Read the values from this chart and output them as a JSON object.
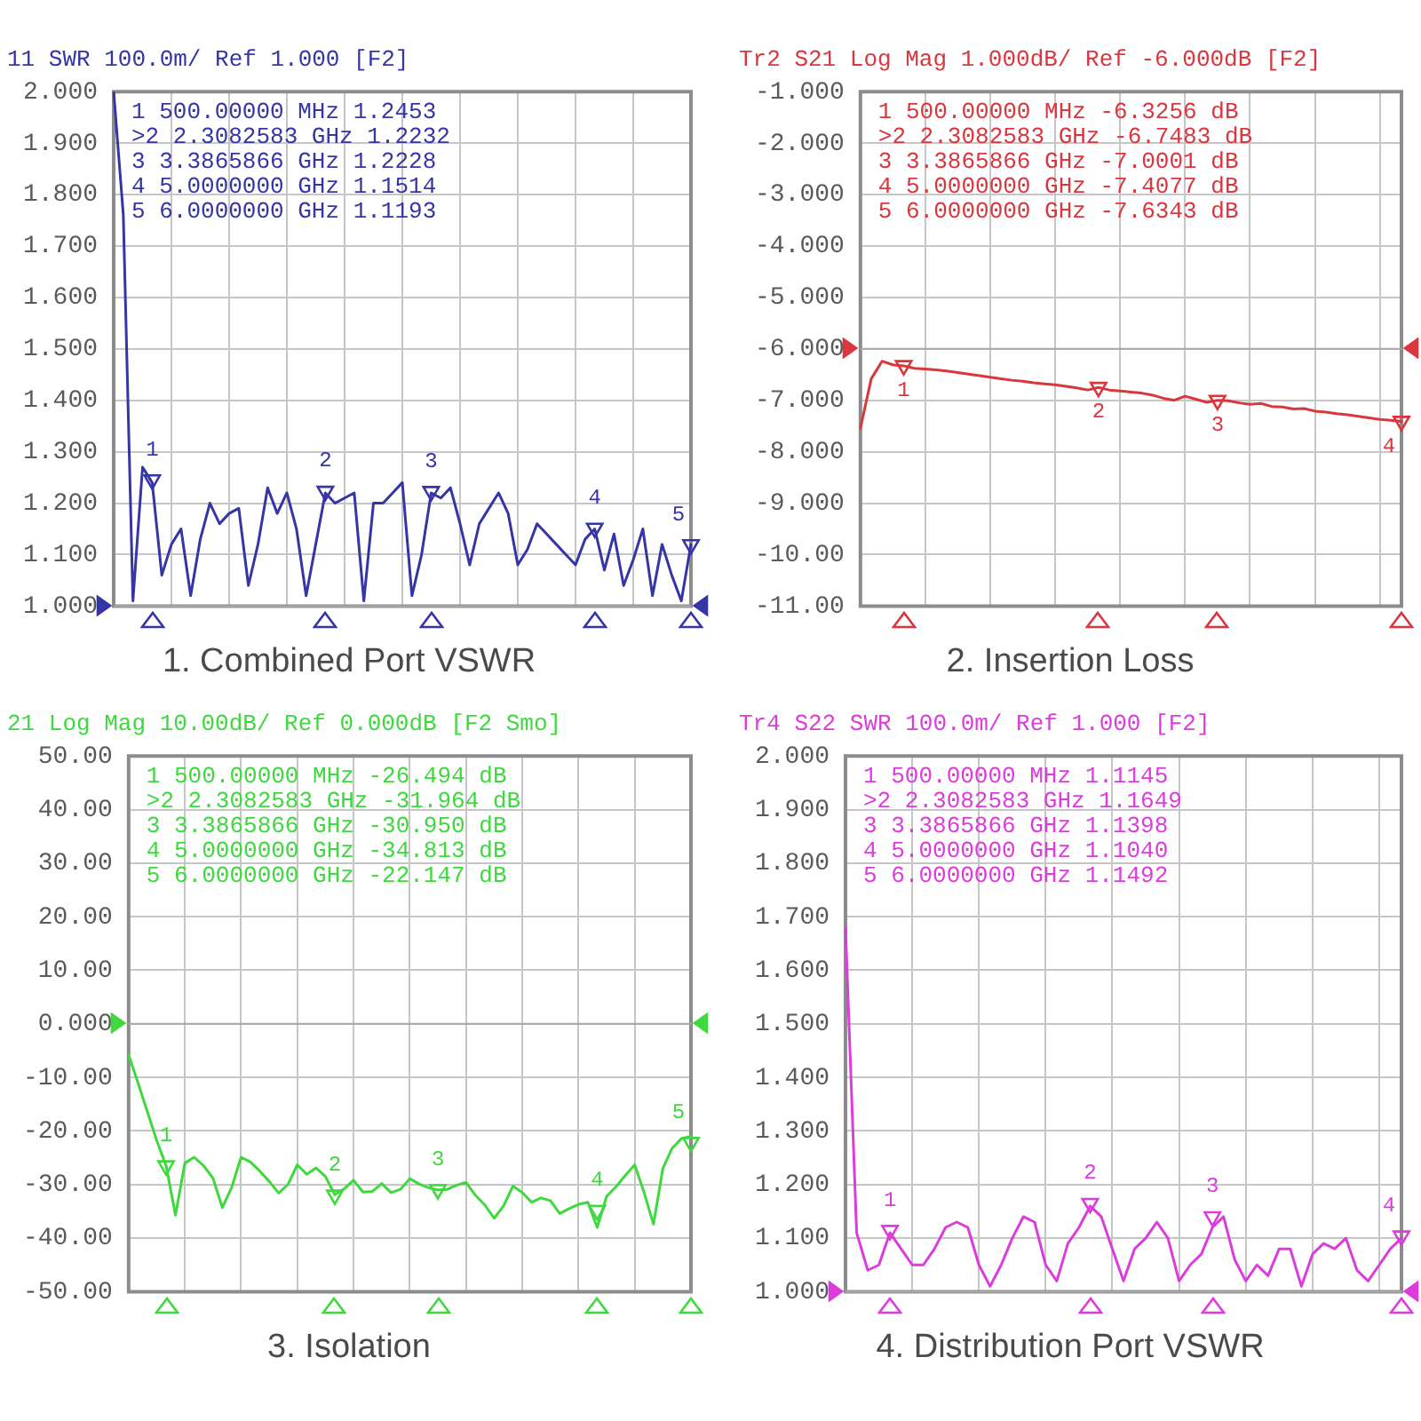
{
  "chart_data": [
    {
      "type": "line",
      "title": "1. Combined Port VSWR",
      "subtitle": "11 SWR 100.0m/ Ref 1.000 [F2]",
      "grid": true,
      "marker": "none",
      "tick_labels": "y",
      "categories": [
        null,
        null,
        null,
        null,
        null,
        null,
        null,
        null,
        null,
        null,
        null,
        null,
        null,
        null,
        null,
        null,
        null,
        null,
        null,
        null,
        null,
        null,
        null,
        null,
        null,
        null,
        null,
        null,
        null,
        null,
        null,
        null,
        null,
        null,
        null,
        null,
        null,
        null,
        null,
        null,
        null,
        null,
        null,
        null,
        null,
        null,
        null,
        null,
        null,
        null,
        null,
        null,
        null,
        null,
        null,
        null,
        null,
        null,
        null,
        null,
        null
      ],
      "ylim": [
        1,
        2
      ],
      "yticks": [
        {
          "value": 1,
          "label": "1.000"
        },
        {
          "value": 1.1,
          "label": "1.100"
        },
        {
          "value": 1.2,
          "label": "1.200"
        },
        {
          "value": 1.3,
          "label": "1.300"
        },
        {
          "value": 1.4,
          "label": "1.400"
        },
        {
          "value": 1.5,
          "label": "1.500"
        },
        {
          "value": 1.6,
          "label": "1.600"
        },
        {
          "value": 1.7,
          "label": "1.700"
        },
        {
          "value": 1.8,
          "label": "1.800"
        },
        {
          "value": 1.9,
          "label": "1.900"
        },
        {
          "value": 2,
          "label": "2.000"
        }
      ],
      "series": [
        {
          "color": "#3535a5",
          "values": [
            2.0,
            1.76,
            1.01,
            1.27,
            1.24,
            1.06,
            1.12,
            1.15,
            1.02,
            1.13,
            1.2,
            1.16,
            1.18,
            1.19,
            1.04,
            1.12,
            1.23,
            1.18,
            1.22,
            1.15,
            1.02,
            1.12,
            1.22,
            1.2,
            1.21,
            1.22,
            1.01,
            1.2,
            1.2,
            1.22,
            1.24,
            1.02,
            1.1,
            1.22,
            1.21,
            1.23,
            1.16,
            1.08,
            1.16,
            1.19,
            1.22,
            1.18,
            1.08,
            1.11,
            1.16,
            1.14,
            1.12,
            1.1,
            1.08,
            1.13,
            1.15,
            1.07,
            1.14,
            1.04,
            1.09,
            1.15,
            1.02,
            1.12,
            1.06,
            1.01,
            1.12
          ]
        },
        {
          "type": "scatter",
          "name": "1",
          "color": "#3535a5",
          "marker": "triangle",
          "values": [
            null,
            null,
            null,
            null,
            1.2453,
            null,
            null,
            null,
            null,
            null,
            null,
            null,
            null,
            null,
            null,
            null,
            null,
            null,
            null,
            null,
            null,
            null,
            null,
            null,
            null,
            null,
            null,
            null,
            null,
            null,
            null,
            null,
            null,
            null,
            null,
            null,
            null,
            null,
            null,
            null,
            null,
            null,
            null,
            null,
            null,
            null,
            null,
            null,
            null,
            null,
            null,
            null,
            null,
            null,
            null,
            null,
            null,
            null,
            null,
            null,
            null
          ]
        },
        {
          "type": "scatter",
          "name": "2",
          "color": "#3535a5",
          "marker": "triangle",
          "values": [
            null,
            null,
            null,
            null,
            null,
            null,
            null,
            null,
            null,
            null,
            null,
            null,
            null,
            null,
            null,
            null,
            null,
            null,
            null,
            null,
            null,
            null,
            1.2232,
            null,
            null,
            null,
            null,
            null,
            null,
            null,
            null,
            null,
            null,
            null,
            null,
            null,
            null,
            null,
            null,
            null,
            null,
            null,
            null,
            null,
            null,
            null,
            null,
            null,
            null,
            null,
            null,
            null,
            null,
            null,
            null,
            null,
            null,
            null,
            null,
            null,
            null
          ]
        },
        {
          "type": "scatter",
          "name": "3",
          "color": "#3535a5",
          "marker": "triangle",
          "values": [
            null,
            null,
            null,
            null,
            null,
            null,
            null,
            null,
            null,
            null,
            null,
            null,
            null,
            null,
            null,
            null,
            null,
            null,
            null,
            null,
            null,
            null,
            null,
            null,
            null,
            null,
            null,
            null,
            null,
            null,
            null,
            null,
            null,
            1.2228,
            null,
            null,
            null,
            null,
            null,
            null,
            null,
            null,
            null,
            null,
            null,
            null,
            null,
            null,
            null,
            null,
            null,
            null,
            null,
            null,
            null,
            null,
            null,
            null,
            null,
            null,
            null
          ]
        },
        {
          "type": "scatter",
          "name": "4",
          "color": "#3535a5",
          "marker": "triangle",
          "values": [
            null,
            null,
            null,
            null,
            null,
            null,
            null,
            null,
            null,
            null,
            null,
            null,
            null,
            null,
            null,
            null,
            null,
            null,
            null,
            null,
            null,
            null,
            null,
            null,
            null,
            null,
            null,
            null,
            null,
            null,
            null,
            null,
            null,
            null,
            null,
            null,
            null,
            null,
            null,
            null,
            null,
            null,
            null,
            null,
            null,
            null,
            null,
            null,
            null,
            null,
            1.1514,
            null,
            null,
            null,
            null,
            null,
            null,
            null,
            null,
            null,
            null
          ]
        },
        {
          "type": "scatter",
          "name": "5",
          "color": "#3535a5",
          "marker": "triangle",
          "values": [
            null,
            null,
            null,
            null,
            null,
            null,
            null,
            null,
            null,
            null,
            null,
            null,
            null,
            null,
            null,
            null,
            null,
            null,
            null,
            null,
            null,
            null,
            null,
            null,
            null,
            null,
            null,
            null,
            null,
            null,
            null,
            null,
            null,
            null,
            null,
            null,
            null,
            null,
            null,
            null,
            null,
            null,
            null,
            null,
            null,
            null,
            null,
            null,
            null,
            null,
            null,
            null,
            null,
            null,
            null,
            null,
            null,
            null,
            null,
            null,
            1.1193
          ]
        }
      ],
      "ref_lines": [
        {
          "axis": "y",
          "value": 1
        }
      ],
      "annotations": [
        "1 500.00000 MHz 1.2453",
        ">2 2.3082583 GHz 1.2232",
        "3 3.3865866 GHz 1.2228",
        "4 5.0000000 GHz 1.1514",
        "5 6.0000000 GHz 1.1193"
      ]
    },
    {
      "type": "line",
      "title": "2. Insertion Loss",
      "subtitle": "Tr2 S21 Log Mag 1.000dB/ Ref -6.000dB [F2]",
      "grid": true,
      "marker": "none",
      "tick_labels": "y",
      "categories": [
        null,
        null,
        null,
        null,
        null,
        null,
        null,
        null,
        null,
        null,
        null,
        null,
        null,
        null,
        null,
        null,
        null,
        null,
        null,
        null,
        null,
        null,
        null,
        null,
        null,
        null,
        null,
        null,
        null,
        null,
        null,
        null,
        null,
        null,
        null,
        null,
        null,
        null,
        null,
        null,
        null,
        null,
        null,
        null,
        null,
        null,
        null,
        null,
        null,
        null,
        null
      ],
      "ylim": [
        -11,
        -1
      ],
      "yticks": [
        {
          "value": -11,
          "label": "-11.00"
        },
        {
          "value": -10,
          "label": "-10.00"
        },
        {
          "value": -9,
          "label": "-9.000"
        },
        {
          "value": -8,
          "label": "-8.000"
        },
        {
          "value": -7,
          "label": "-7.000"
        },
        {
          "value": -6,
          "label": "-6.000"
        },
        {
          "value": -5,
          "label": "-5.000"
        },
        {
          "value": -4,
          "label": "-4.000"
        },
        {
          "value": -3,
          "label": "-3.000"
        },
        {
          "value": -2,
          "label": "-2.000"
        },
        {
          "value": -1,
          "label": "-1.000"
        }
      ],
      "series": [
        {
          "color": "#d9363e",
          "values": [
            -7.54,
            -6.58,
            -6.24,
            -6.31,
            -6.33,
            -6.38,
            -6.39,
            -6.41,
            -6.43,
            -6.46,
            -6.49,
            -6.52,
            -6.55,
            -6.58,
            -6.61,
            -6.63,
            -6.66,
            -6.68,
            -6.7,
            -6.73,
            -6.76,
            -6.8,
            -6.75,
            -6.8,
            -6.82,
            -6.84,
            -6.86,
            -6.9,
            -6.96,
            -7,
            -6.92,
            -6.98,
            -7.04,
            -7,
            -7.01,
            -7.05,
            -7.08,
            -7.06,
            -7.12,
            -7.13,
            -7.17,
            -7.16,
            -7.21,
            -7.23,
            -7.26,
            -7.28,
            -7.31,
            -7.34,
            -7.37,
            -7.39,
            -7.41
          ]
        },
        {
          "type": "scatter",
          "name": "1",
          "color": "#d9363e",
          "marker": "triangle",
          "values": [
            null,
            null,
            null,
            null,
            -6.3256,
            null,
            null,
            null,
            null,
            null,
            null,
            null,
            null,
            null,
            null,
            null,
            null,
            null,
            null,
            null,
            null,
            null,
            null,
            null,
            null,
            null,
            null,
            null,
            null,
            null,
            null,
            null,
            null,
            null,
            null,
            null,
            null,
            null,
            null,
            null,
            null,
            null,
            null,
            null,
            null,
            null,
            null,
            null,
            null,
            null,
            null
          ]
        },
        {
          "type": "scatter",
          "name": "2",
          "color": "#d9363e",
          "marker": "triangle",
          "values": [
            null,
            null,
            null,
            null,
            null,
            null,
            null,
            null,
            null,
            null,
            null,
            null,
            null,
            null,
            null,
            null,
            null,
            null,
            null,
            null,
            null,
            null,
            -6.7483,
            null,
            null,
            null,
            null,
            null,
            null,
            null,
            null,
            null,
            null,
            null,
            null,
            null,
            null,
            null,
            null,
            null,
            null,
            null,
            null,
            null,
            null,
            null,
            null,
            null,
            null,
            null,
            null
          ]
        },
        {
          "type": "scatter",
          "name": "3",
          "color": "#d9363e",
          "marker": "triangle",
          "values": [
            null,
            null,
            null,
            null,
            null,
            null,
            null,
            null,
            null,
            null,
            null,
            null,
            null,
            null,
            null,
            null,
            null,
            null,
            null,
            null,
            null,
            null,
            null,
            null,
            null,
            null,
            null,
            null,
            null,
            null,
            null,
            null,
            null,
            -7.0001,
            null,
            null,
            null,
            null,
            null,
            null,
            null,
            null,
            null,
            null,
            null,
            null,
            null,
            null,
            null,
            null,
            null
          ]
        },
        {
          "type": "scatter",
          "name": "4",
          "color": "#d9363e",
          "marker": "triangle",
          "values": [
            null,
            null,
            null,
            null,
            null,
            null,
            null,
            null,
            null,
            null,
            null,
            null,
            null,
            null,
            null,
            null,
            null,
            null,
            null,
            null,
            null,
            null,
            null,
            null,
            null,
            null,
            null,
            null,
            null,
            null,
            null,
            null,
            null,
            null,
            null,
            null,
            null,
            null,
            null,
            null,
            null,
            null,
            null,
            null,
            null,
            null,
            null,
            null,
            null,
            null,
            -7.4077
          ]
        }
      ],
      "ref_lines": [
        {
          "axis": "y",
          "value": -6
        }
      ],
      "annotations": [
        "1 500.00000 MHz -6.3256 dB",
        ">2 2.3082583 GHz -6.7483 dB",
        "3 3.3865866 GHz -7.0001 dB",
        "4 5.0000000 GHz -7.4077 dB",
        "5 6.0000000 GHz -7.6343 dB"
      ]
    },
    {
      "type": "line",
      "title": "3. Isolation",
      "subtitle": "21 Log Mag 10.00dB/ Ref 0.000dB [F2 Smo]",
      "grid": true,
      "marker": "none",
      "tick_labels": "y",
      "categories": [
        null,
        null,
        null,
        null,
        null,
        null,
        null,
        null,
        null,
        null,
        null,
        null,
        null,
        null,
        null,
        null,
        null,
        null,
        null,
        null,
        null,
        null,
        null,
        null,
        null,
        null,
        null,
        null,
        null,
        null,
        null,
        null,
        null,
        null,
        null,
        null,
        null,
        null,
        null,
        null,
        null,
        null,
        null,
        null,
        null,
        null,
        null,
        null,
        null,
        null,
        null,
        null,
        null,
        null,
        null,
        null,
        null,
        null,
        null,
        null,
        null
      ],
      "ylim": [
        -50,
        50
      ],
      "yticks": [
        {
          "value": -50,
          "label": "-50.00"
        },
        {
          "value": -40,
          "label": "-40.00"
        },
        {
          "value": -30,
          "label": "-30.00"
        },
        {
          "value": -20,
          "label": "-20.00"
        },
        {
          "value": -10,
          "label": "-10.00"
        },
        {
          "value": 0,
          "label": "0.000"
        },
        {
          "value": 10,
          "label": "10.00"
        },
        {
          "value": 20,
          "label": "20.00"
        },
        {
          "value": 30,
          "label": "30.00"
        },
        {
          "value": 40,
          "label": "40.00"
        },
        {
          "value": 50,
          "label": "50.00"
        }
      ],
      "series": [
        {
          "color": "#3fd83f",
          "values": [
            -5.8,
            -11,
            -16.4,
            -21.8,
            -26.5,
            -35.7,
            -26,
            -24.9,
            -26.5,
            -28.8,
            -34.3,
            -30.5,
            -24.9,
            -25.8,
            -27.5,
            -29.4,
            -31.6,
            -30,
            -26.3,
            -28.1,
            -26.9,
            -28.5,
            -31.9,
            -30.8,
            -29.2,
            -31.4,
            -31.3,
            -29.8,
            -31.5,
            -30.9,
            -28.9,
            -29.9,
            -30.6,
            -31,
            -30.9,
            -30.1,
            -29.6,
            -32,
            -33.8,
            -36.3,
            -34,
            -30.3,
            -31.5,
            -33.3,
            -32.5,
            -33,
            -35.4,
            -34.5,
            -33.7,
            -33.3,
            -38,
            -32.2,
            -30.4,
            -28.3,
            -26.3,
            -31.5,
            -37.4,
            -27,
            -23.2,
            -21.4,
            -21
          ]
        },
        {
          "type": "scatter",
          "name": "1",
          "color": "#3fd83f",
          "marker": "triangle",
          "values": [
            null,
            null,
            null,
            null,
            -26.494,
            null,
            null,
            null,
            null,
            null,
            null,
            null,
            null,
            null,
            null,
            null,
            null,
            null,
            null,
            null,
            null,
            null,
            null,
            null,
            null,
            null,
            null,
            null,
            null,
            null,
            null,
            null,
            null,
            null,
            null,
            null,
            null,
            null,
            null,
            null,
            null,
            null,
            null,
            null,
            null,
            null,
            null,
            null,
            null,
            null,
            null,
            null,
            null,
            null,
            null,
            null,
            null,
            null,
            null,
            null,
            null
          ]
        },
        {
          "type": "scatter",
          "name": "2",
          "color": "#3fd83f",
          "marker": "triangle",
          "values": [
            null,
            null,
            null,
            null,
            null,
            null,
            null,
            null,
            null,
            null,
            null,
            null,
            null,
            null,
            null,
            null,
            null,
            null,
            null,
            null,
            null,
            null,
            -31.964,
            null,
            null,
            null,
            null,
            null,
            null,
            null,
            null,
            null,
            null,
            null,
            null,
            null,
            null,
            null,
            null,
            null,
            null,
            null,
            null,
            null,
            null,
            null,
            null,
            null,
            null,
            null,
            null,
            null,
            null,
            null,
            null,
            null,
            null,
            null,
            null,
            null,
            null
          ]
        },
        {
          "type": "scatter",
          "name": "3",
          "color": "#3fd83f",
          "marker": "triangle",
          "values": [
            null,
            null,
            null,
            null,
            null,
            null,
            null,
            null,
            null,
            null,
            null,
            null,
            null,
            null,
            null,
            null,
            null,
            null,
            null,
            null,
            null,
            null,
            null,
            null,
            null,
            null,
            null,
            null,
            null,
            null,
            null,
            null,
            null,
            -30.95,
            null,
            null,
            null,
            null,
            null,
            null,
            null,
            null,
            null,
            null,
            null,
            null,
            null,
            null,
            null,
            null,
            null,
            null,
            null,
            null,
            null,
            null,
            null,
            null,
            null,
            null,
            null
          ]
        },
        {
          "type": "scatter",
          "name": "4",
          "color": "#3fd83f",
          "marker": "triangle",
          "values": [
            null,
            null,
            null,
            null,
            null,
            null,
            null,
            null,
            null,
            null,
            null,
            null,
            null,
            null,
            null,
            null,
            null,
            null,
            null,
            null,
            null,
            null,
            null,
            null,
            null,
            null,
            null,
            null,
            null,
            null,
            null,
            null,
            null,
            null,
            null,
            null,
            null,
            null,
            null,
            null,
            null,
            null,
            null,
            null,
            null,
            null,
            null,
            null,
            null,
            null,
            -34.813,
            null,
            null,
            null,
            null,
            null,
            null,
            null,
            null,
            null,
            null
          ]
        },
        {
          "type": "scatter",
          "name": "5",
          "color": "#3fd83f",
          "marker": "triangle",
          "values": [
            null,
            null,
            null,
            null,
            null,
            null,
            null,
            null,
            null,
            null,
            null,
            null,
            null,
            null,
            null,
            null,
            null,
            null,
            null,
            null,
            null,
            null,
            null,
            null,
            null,
            null,
            null,
            null,
            null,
            null,
            null,
            null,
            null,
            null,
            null,
            null,
            null,
            null,
            null,
            null,
            null,
            null,
            null,
            null,
            null,
            null,
            null,
            null,
            null,
            null,
            null,
            null,
            null,
            null,
            null,
            null,
            null,
            null,
            null,
            null,
            -22.147
          ]
        }
      ],
      "ref_lines": [
        {
          "axis": "y",
          "value": 0
        }
      ],
      "annotations": [
        "1 500.00000 MHz -26.494 dB",
        ">2 2.3082583 GHz -31.964 dB",
        "3 3.3865866 GHz -30.950 dB",
        "4 5.0000000 GHz -34.813 dB",
        "5 6.0000000 GHz -22.147 dB"
      ]
    },
    {
      "type": "line",
      "title": "4. Distribution Port VSWR",
      "subtitle": "Tr4 S22 SWR 100.0m/ Ref 1.000 [F2]",
      "grid": true,
      "marker": "none",
      "tick_labels": "y",
      "categories": [
        null,
        null,
        null,
        null,
        null,
        null,
        null,
        null,
        null,
        null,
        null,
        null,
        null,
        null,
        null,
        null,
        null,
        null,
        null,
        null,
        null,
        null,
        null,
        null,
        null,
        null,
        null,
        null,
        null,
        null,
        null,
        null,
        null,
        null,
        null,
        null,
        null,
        null,
        null,
        null,
        null,
        null,
        null,
        null,
        null,
        null,
        null,
        null,
        null,
        null,
        null
      ],
      "ylim": [
        1,
        2
      ],
      "yticks": [
        {
          "value": 1,
          "label": "1.000"
        },
        {
          "value": 1.1,
          "label": "1.100"
        },
        {
          "value": 1.2,
          "label": "1.200"
        },
        {
          "value": 1.3,
          "label": "1.300"
        },
        {
          "value": 1.4,
          "label": "1.400"
        },
        {
          "value": 1.5,
          "label": "1.500"
        },
        {
          "value": 1.6,
          "label": "1.600"
        },
        {
          "value": 1.7,
          "label": "1.700"
        },
        {
          "value": 1.8,
          "label": "1.800"
        },
        {
          "value": 1.9,
          "label": "1.900"
        },
        {
          "value": 2,
          "label": "2.000"
        }
      ],
      "series": [
        {
          "color": "#dc3cdc",
          "values": [
            1.68,
            1.11,
            1.04,
            1.05,
            1.11,
            1.08,
            1.05,
            1.05,
            1.08,
            1.12,
            1.13,
            1.12,
            1.05,
            1.01,
            1.05,
            1.1,
            1.14,
            1.13,
            1.05,
            1.02,
            1.09,
            1.12,
            1.16,
            1.14,
            1.08,
            1.02,
            1.08,
            1.1,
            1.13,
            1.1,
            1.02,
            1.05,
            1.07,
            1.12,
            1.14,
            1.06,
            1.02,
            1.05,
            1.03,
            1.08,
            1.08,
            1.01,
            1.07,
            1.09,
            1.08,
            1.1,
            1.04,
            1.02,
            1.05,
            1.08,
            1.1
          ]
        },
        {
          "type": "scatter",
          "name": "1",
          "color": "#dc3cdc",
          "marker": "triangle",
          "values": [
            null,
            null,
            null,
            null,
            1.1145,
            null,
            null,
            null,
            null,
            null,
            null,
            null,
            null,
            null,
            null,
            null,
            null,
            null,
            null,
            null,
            null,
            null,
            null,
            null,
            null,
            null,
            null,
            null,
            null,
            null,
            null,
            null,
            null,
            null,
            null,
            null,
            null,
            null,
            null,
            null,
            null,
            null,
            null,
            null,
            null,
            null,
            null,
            null,
            null,
            null,
            null
          ]
        },
        {
          "type": "scatter",
          "name": "2",
          "color": "#dc3cdc",
          "marker": "triangle",
          "values": [
            null,
            null,
            null,
            null,
            null,
            null,
            null,
            null,
            null,
            null,
            null,
            null,
            null,
            null,
            null,
            null,
            null,
            null,
            null,
            null,
            null,
            null,
            1.1649,
            null,
            null,
            null,
            null,
            null,
            null,
            null,
            null,
            null,
            null,
            null,
            null,
            null,
            null,
            null,
            null,
            null,
            null,
            null,
            null,
            null,
            null,
            null,
            null,
            null,
            null,
            null,
            null
          ]
        },
        {
          "type": "scatter",
          "name": "3",
          "color": "#dc3cdc",
          "marker": "triangle",
          "values": [
            null,
            null,
            null,
            null,
            null,
            null,
            null,
            null,
            null,
            null,
            null,
            null,
            null,
            null,
            null,
            null,
            null,
            null,
            null,
            null,
            null,
            null,
            null,
            null,
            null,
            null,
            null,
            null,
            null,
            null,
            null,
            null,
            null,
            1.1398,
            null,
            null,
            null,
            null,
            null,
            null,
            null,
            null,
            null,
            null,
            null,
            null,
            null,
            null,
            null,
            null,
            null
          ]
        },
        {
          "type": "scatter",
          "name": "4",
          "color": "#dc3cdc",
          "marker": "triangle",
          "values": [
            null,
            null,
            null,
            null,
            null,
            null,
            null,
            null,
            null,
            null,
            null,
            null,
            null,
            null,
            null,
            null,
            null,
            null,
            null,
            null,
            null,
            null,
            null,
            null,
            null,
            null,
            null,
            null,
            null,
            null,
            null,
            null,
            null,
            null,
            null,
            null,
            null,
            null,
            null,
            null,
            null,
            null,
            null,
            null,
            null,
            null,
            null,
            null,
            null,
            null,
            1.104
          ]
        }
      ],
      "ref_lines": [
        {
          "axis": "y",
          "value": 1
        }
      ],
      "annotations": [
        "1 500.00000 MHz 1.1145",
        ">2 2.3082583 GHz 1.1649",
        "3 3.3865866 GHz 1.1398",
        "4 5.0000000 GHz 1.1040",
        "5 6.0000000 GHz 1.1492"
      ]
    }
  ]
}
